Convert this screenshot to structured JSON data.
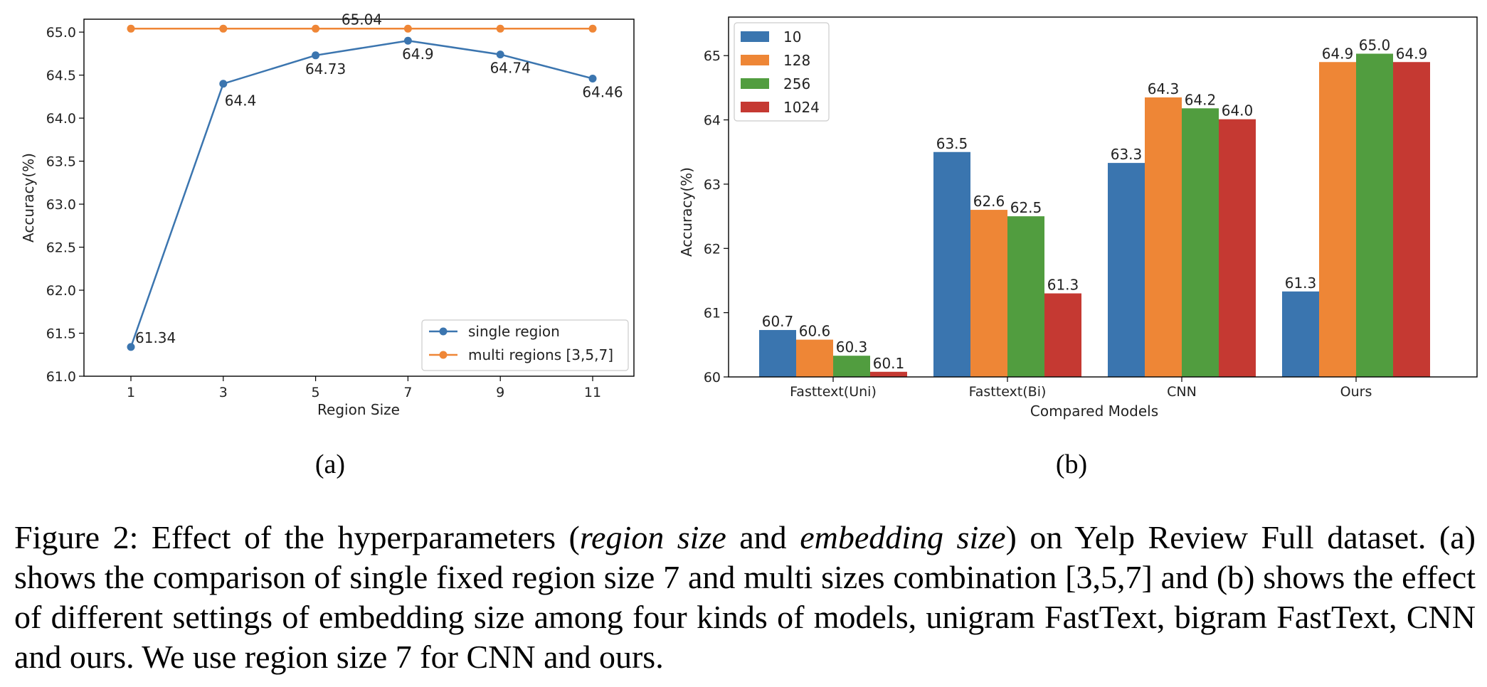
{
  "chart_data": [
    {
      "type": "line",
      "xlabel": "Region Size",
      "ylabel": "Accuracy(%)",
      "x": [
        1,
        3,
        5,
        7,
        9,
        11
      ],
      "xticks": [
        "1",
        "3",
        "5",
        "7",
        "9",
        "11"
      ],
      "ylim": [
        61.0,
        65.15
      ],
      "yticks": [
        "61.0",
        "61.5",
        "62.0",
        "62.5",
        "63.0",
        "63.5",
        "64.0",
        "64.5",
        "65.0"
      ],
      "series": [
        {
          "name": "single region",
          "color": "#3b75af",
          "values": [
            61.34,
            64.4,
            64.73,
            64.9,
            64.74,
            64.46
          ],
          "labels": [
            "61.34",
            "64.4",
            "64.73",
            "64.9",
            "64.74",
            "64.46"
          ]
        },
        {
          "name": "multi regions [3,5,7]",
          "color": "#ef8636",
          "values": [
            65.04,
            65.04,
            65.04,
            65.04,
            65.04,
            65.04
          ],
          "labels": [
            "65.04"
          ]
        }
      ],
      "legend": "bottom-right",
      "grid": false,
      "sublabel": "(a)"
    },
    {
      "type": "bar",
      "xlabel": "Compared Models",
      "ylabel": "Accuracy(%)",
      "categories": [
        "Fasttext(Uni)",
        "Fasttext(Bi)",
        "CNN",
        "Ours"
      ],
      "ylim": [
        60,
        65.6
      ],
      "yticks": [
        "60",
        "61",
        "62",
        "63",
        "64",
        "65"
      ],
      "series": [
        {
          "name": "10",
          "color": "#3a75af",
          "values": [
            60.73,
            63.5,
            63.33,
            61.33
          ],
          "labels": [
            "60.7",
            "63.5",
            "63.3",
            "61.3"
          ]
        },
        {
          "name": "128",
          "color": "#ee8636",
          "values": [
            60.58,
            62.6,
            64.35,
            64.9
          ],
          "labels": [
            "60.6",
            "62.6",
            "64.3",
            "64.9"
          ]
        },
        {
          "name": "256",
          "color": "#519d3f",
          "values": [
            60.33,
            62.5,
            64.18,
            65.03
          ],
          "labels": [
            "60.3",
            "62.5",
            "64.2",
            "65.0"
          ]
        },
        {
          "name": "1024",
          "color": "#c53932",
          "values": [
            60.08,
            61.3,
            64.01,
            64.9
          ],
          "labels": [
            "60.1",
            "61.3",
            "64.0",
            "64.9"
          ]
        }
      ],
      "legend": "top-left",
      "grid": false,
      "sublabel": "(b)"
    }
  ],
  "caption": {
    "prefix": "Figure 2: Effect of the hyperparameters (",
    "term1": "region size",
    "mid": " and ",
    "term2": "embedding size",
    "suffix": ") on Yelp Review Full dataset. (a) shows the comparison of single fixed region size 7 and multi sizes combination [3,5,7] and (b) shows the effect of different settings of embedding size among four kinds of models, unigram FastText, bigram FastText, CNN and ours. We use region size 7 for CNN and ours."
  }
}
